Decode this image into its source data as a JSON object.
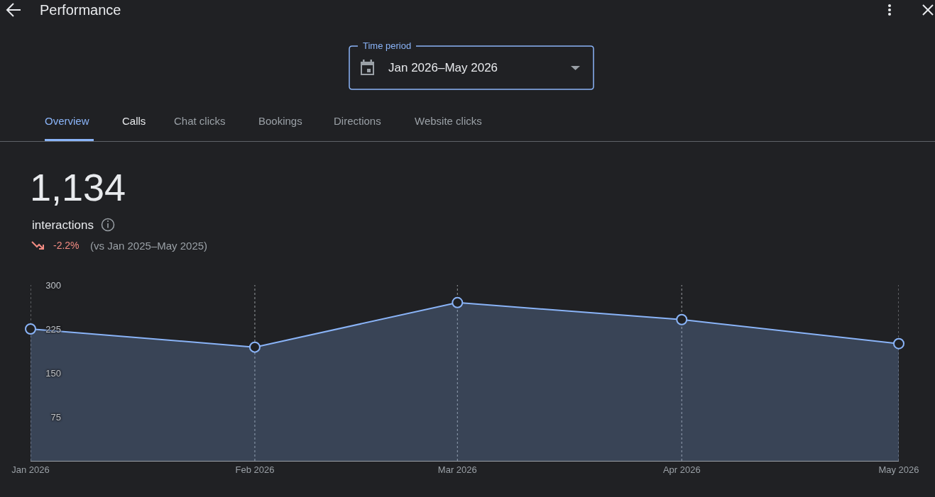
{
  "chart_data": {
    "type": "area",
    "title": "Performance",
    "x": [
      "2026-01",
      "2026-02",
      "2026-03",
      "2026-04",
      "2026-05"
    ],
    "series": [
      {
        "color": "#8ab4f8",
        "values": [
          225,
          194,
          270,
          241,
          200
        ]
      }
    ],
    "xlim": [
      "2026-01",
      "2026-05"
    ],
    "xticks": [
      {
        "value": "2026-01",
        "label": "Jan 2026"
      },
      {
        "value": "2026-02",
        "label": "Feb 2026"
      },
      {
        "value": "2026-03",
        "label": "Mar 2026"
      },
      {
        "value": "2026-04",
        "label": "Apr 2026"
      },
      {
        "value": "2026-05",
        "label": "May 2026"
      }
    ],
    "ylim": [
      0,
      300
    ],
    "yticks": [
      75,
      150,
      225,
      300
    ],
    "grid": "x",
    "marker": "circle",
    "line_style": "solid",
    "annotations": [
      "Time period",
      "Jan 2026–May 2026",
      "Overview",
      "Calls",
      "Chat clicks",
      "Bookings",
      "Directions",
      "Website clicks",
      "1,134",
      "interactions",
      "-2.2%",
      "(vs Jan 2025–May 2025)"
    ]
  }
}
